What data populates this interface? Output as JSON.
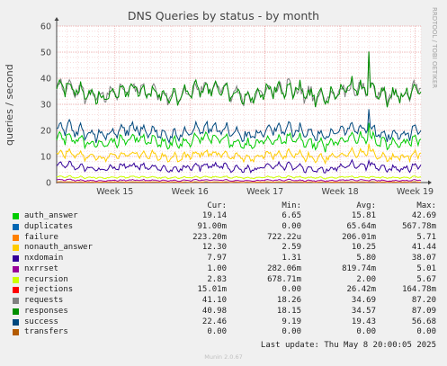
{
  "side_label": "RRDTOOL / TOBI OETIKER",
  "version": "Munin 2.0.67",
  "last_update": "Last update: Thu May  8 20:00:05 2025",
  "legend_headers": {
    "cur": "Cur:",
    "min": "Min:",
    "avg": "Avg:",
    "max": "Max:"
  },
  "chart_data": {
    "type": "line",
    "title": "DNS Queries by status - by month",
    "ylabel": "queries / second",
    "xlabel": "",
    "ylim": [
      0,
      60
    ],
    "y_ticks": [
      "0",
      "10",
      "20",
      "30",
      "40",
      "50",
      "60"
    ],
    "x_ticks": [
      {
        "label": "Week 15",
        "pos": 0.16
      },
      {
        "label": "Week 16",
        "pos": 0.366
      },
      {
        "label": "Week 17",
        "pos": 0.572
      },
      {
        "label": "Week 18",
        "pos": 0.778
      },
      {
        "label": "Week 19",
        "pos": 0.984
      }
    ],
    "grid": true,
    "series": [
      {
        "name": "auth_answer",
        "color": "#00cc00",
        "cur": "19.14",
        "min": "6.65",
        "avg": "15.81",
        "max": "42.69",
        "base": 15.8,
        "amp": 2.5
      },
      {
        "name": "duplicates",
        "color": "#0066b3",
        "cur": "91.00m",
        "min": "0.00",
        "avg": "65.64m",
        "max": "567.78m",
        "base": 0.07,
        "amp": 0.05
      },
      {
        "name": "failure",
        "color": "#ff8000",
        "cur": "223.20m",
        "min": "722.22u",
        "avg": "206.01m",
        "max": "5.71",
        "base": 0.2,
        "amp": 0.1
      },
      {
        "name": "nonauth_answer",
        "color": "#ffcc00",
        "cur": "12.30",
        "min": "2.59",
        "avg": "10.25",
        "max": "41.44",
        "base": 10.3,
        "amp": 1.8
      },
      {
        "name": "nxdomain",
        "color": "#330099",
        "cur": "7.97",
        "min": "1.31",
        "avg": "5.80",
        "max": "38.07",
        "base": 5.8,
        "amp": 1.6
      },
      {
        "name": "nxrrset",
        "color": "#990099",
        "cur": "1.00",
        "min": "282.06m",
        "avg": "819.74m",
        "max": "5.01",
        "base": 0.82,
        "amp": 0.3
      },
      {
        "name": "recursion",
        "color": "#ccff00",
        "cur": "2.83",
        "min": "678.71m",
        "avg": "2.00",
        "max": "5.67",
        "base": 2.0,
        "amp": 0.4
      },
      {
        "name": "rejections",
        "color": "#ff0000",
        "cur": "15.01m",
        "min": "0.00",
        "avg": "26.42m",
        "max": "164.78m",
        "base": 0.03,
        "amp": 0.02
      },
      {
        "name": "requests",
        "color": "#808080",
        "cur": "41.10",
        "min": "18.26",
        "avg": "34.69",
        "max": "87.20",
        "base": 34.7,
        "amp": 3.5
      },
      {
        "name": "responses",
        "color": "#008f00",
        "cur": "40.98",
        "min": "18.15",
        "avg": "34.57",
        "max": "87.09",
        "base": 34.6,
        "amp": 3.5
      },
      {
        "name": "success",
        "color": "#00487d",
        "cur": "22.46",
        "min": "9.19",
        "avg": "19.43",
        "max": "56.68",
        "base": 19.4,
        "amp": 2.8
      },
      {
        "name": "transfers",
        "color": "#b35a00",
        "cur": "0.00",
        "min": "0.00",
        "avg": "0.00",
        "max": "0.00",
        "base": 0,
        "amp": 0
      }
    ]
  }
}
